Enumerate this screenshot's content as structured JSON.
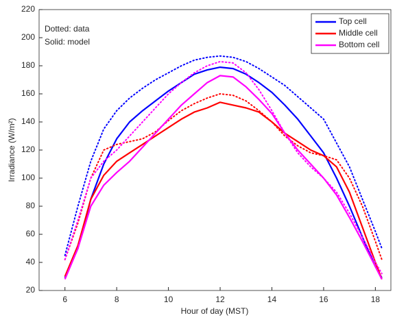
{
  "chart_data": {
    "type": "line",
    "xlabel": "Hour of day (MST)",
    "ylabel": "Irradiance (W/m²)",
    "annotations": [
      "Dotted: data",
      "Solid: model"
    ],
    "x": [
      6,
      6.5,
      7,
      7.5,
      8,
      8.5,
      9,
      9.5,
      10,
      10.5,
      11,
      11.5,
      12,
      12.5,
      13,
      13.5,
      14,
      14.5,
      15,
      15.5,
      16,
      16.5,
      17,
      17.5,
      18,
      18.25
    ],
    "xlim": [
      5,
      18.6
    ],
    "xticks": [
      6,
      8,
      10,
      12,
      14,
      16,
      18
    ],
    "ylim": [
      20,
      220
    ],
    "yticks": [
      20,
      40,
      60,
      80,
      100,
      120,
      140,
      160,
      180,
      200,
      220
    ],
    "legend": "upper-right",
    "series": [
      {
        "name": "Top cell",
        "color": "#0000ff",
        "values": [
          29,
          50,
          85,
          110,
          128,
          140,
          148,
          155,
          162,
          168,
          174,
          177,
          179,
          178,
          174,
          168,
          161,
          152,
          142,
          130,
          118,
          100,
          80,
          58,
          37,
          29
        ],
        "data_values": [
          45,
          80,
          112,
          135,
          148,
          157,
          164,
          170,
          175,
          180,
          184,
          186,
          187,
          186,
          183,
          178,
          172,
          166,
          158,
          150,
          142,
          125,
          108,
          85,
          62,
          50
        ]
      },
      {
        "name": "Middle cell",
        "color": "#ff0000",
        "values": [
          30,
          52,
          85,
          102,
          112,
          118,
          124,
          130,
          136,
          142,
          147,
          150,
          154,
          152,
          150,
          147,
          140,
          132,
          126,
          120,
          116,
          108,
          90,
          65,
          40,
          28
        ],
        "data_values": [
          42,
          68,
          100,
          120,
          124,
          126,
          128,
          133,
          141,
          148,
          153,
          157,
          160,
          159,
          155,
          148,
          140,
          130,
          123,
          118,
          116,
          113,
          100,
          80,
          55,
          42
        ]
      },
      {
        "name": "Bottom cell",
        "color": "#ff00ff",
        "values": [
          28,
          50,
          80,
          95,
          104,
          112,
          122,
          132,
          142,
          152,
          160,
          168,
          173,
          172,
          165,
          156,
          146,
          132,
          120,
          110,
          100,
          88,
          72,
          55,
          37,
          28
        ],
        "data_values": [
          42,
          70,
          100,
          112,
          120,
          130,
          140,
          150,
          160,
          168,
          175,
          180,
          183,
          182,
          175,
          163,
          148,
          132,
          118,
          108,
          100,
          90,
          75,
          58,
          40,
          32
        ]
      }
    ]
  }
}
